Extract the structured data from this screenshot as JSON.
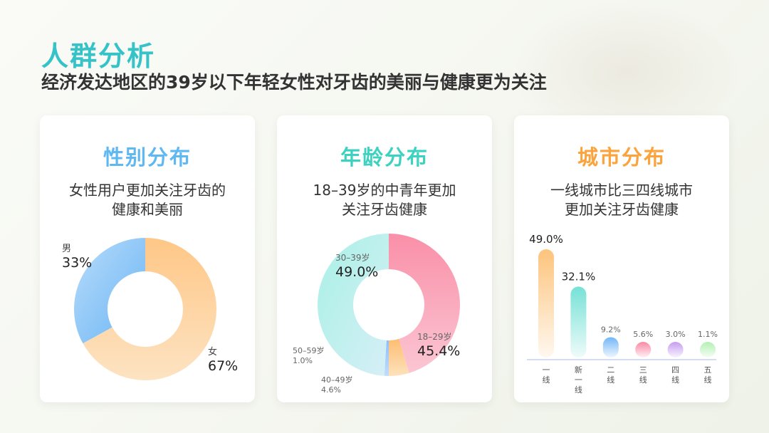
{
  "header": {
    "title": "人群分析",
    "subtitle": "经济发达地区的39岁以下年轻女性对牙齿的美丽与健康更为关注"
  },
  "cards": [
    {
      "title": "性别分布",
      "desc_lines": [
        "女性用户更加关注牙齿的",
        "健康和美丽"
      ],
      "accent": "#5fb8f2"
    },
    {
      "title": "年龄分布",
      "desc_lines": [
        "18–39岁的中青年更加",
        "关注牙齿健康"
      ],
      "accent": "#3cd2bf"
    },
    {
      "title": "城市分布",
      "desc_lines": [
        "一线城市比三四线城市",
        "更加关注牙齿健康"
      ],
      "accent": "#fba33c"
    }
  ],
  "chart_data": [
    {
      "type": "pie",
      "title": "性别分布",
      "categories": [
        "女",
        "男"
      ],
      "values": [
        67,
        33
      ],
      "value_labels": [
        "67%",
        "33%"
      ],
      "colors": [
        [
          "#fde3c2",
          "#fec787"
        ],
        [
          "#b8dcfb",
          "#6ab5f4"
        ]
      ]
    },
    {
      "type": "pie",
      "title": "年龄分布",
      "categories": [
        "18–29岁",
        "40–49岁",
        "50–59岁",
        "30–39岁"
      ],
      "values": [
        45.4,
        4.6,
        1.0,
        49.0
      ],
      "value_labels": [
        "45.4%",
        "4.6%",
        "1.0%",
        "49.0%"
      ],
      "colors": [
        [
          "#fbbacb",
          "#fa8fa8"
        ],
        [
          "#fcd9a3",
          "#fdbd73"
        ],
        [
          "#c2dcfb",
          "#8fbff6"
        ],
        [
          "#b3f1ea",
          "#cfeef4"
        ]
      ]
    },
    {
      "type": "bar",
      "title": "城市分布",
      "categories": [
        "一线",
        "新一线",
        "二线",
        "三线",
        "四线",
        "五线"
      ],
      "values": [
        49.0,
        32.1,
        9.2,
        5.6,
        3.0,
        1.1
      ],
      "value_labels": [
        "49.0%",
        "32.1%",
        "9.2%",
        "5.6%",
        "3.0%",
        "1.1%"
      ],
      "colors": [
        "#fdc47c",
        "#76e1d6",
        "#72b7f7",
        "#f988a5",
        "#c69cf0",
        "#b4f0b4"
      ],
      "ylim": [
        0,
        49
      ]
    }
  ]
}
